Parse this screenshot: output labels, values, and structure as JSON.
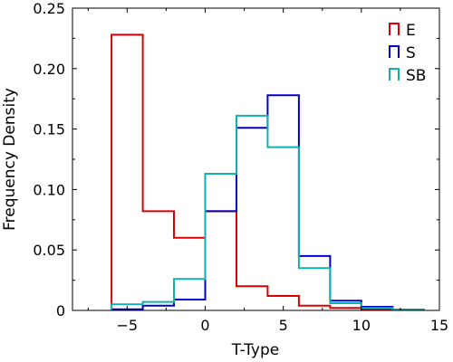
{
  "chart_data": {
    "type": "histogram-step",
    "title": "",
    "xlabel": "T-Type",
    "ylabel": "Frequency Density",
    "xlim": [
      -8.5,
      15
    ],
    "ylim": [
      0,
      0.25
    ],
    "xticks": [
      -5,
      0,
      5,
      10,
      15
    ],
    "xtick_labels": [
      "−5",
      "0",
      "5",
      "10",
      "15"
    ],
    "yticks": [
      0,
      0.05,
      0.1,
      0.15,
      0.2,
      0.25
    ],
    "ytick_labels": [
      "0",
      "0.05",
      "0.10",
      "0.15",
      "0.20",
      "0.25"
    ],
    "bin_edges": [
      -6,
      -4,
      -2,
      0,
      2,
      4,
      6,
      8,
      10,
      12,
      14
    ],
    "legend_position": "top-right",
    "grid": false,
    "series": [
      {
        "name": "E",
        "color": "#dd0000",
        "values": [
          0.228,
          0.082,
          0.06,
          0.082,
          0.02,
          0.012,
          0.004,
          0.002,
          0.001,
          0.0005
        ]
      },
      {
        "name": "S",
        "color": "#0000cc",
        "values": [
          0.001,
          0.004,
          0.009,
          0.082,
          0.151,
          0.178,
          0.045,
          0.008,
          0.003,
          0.0005
        ]
      },
      {
        "name": "SB",
        "color": "#11b0b0",
        "values": [
          0.005,
          0.007,
          0.026,
          0.113,
          0.161,
          0.135,
          0.035,
          0.006,
          0.002,
          0.0005
        ]
      }
    ]
  }
}
